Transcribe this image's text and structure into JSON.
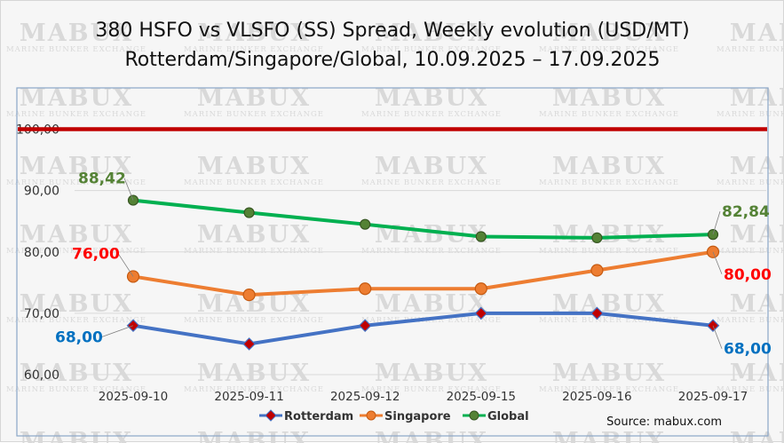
{
  "chart_data": {
    "type": "line",
    "title_line1": "380 HSFO vs VLSFO (SS) Spread, Weekly evolution (USD/MT)",
    "title_line2": "Rotterdam/Singapore/Global, 10.09.2025 – 17.09.2025",
    "categories": [
      "2025-09-10",
      "2025-09-11",
      "2025-09-12",
      "2025-09-15",
      "2025-09-16",
      "2025-09-17"
    ],
    "ylim": [
      60,
      105
    ],
    "yticks": [
      "60,00",
      "70,00",
      "80,00",
      "90,00",
      "100,00"
    ],
    "ytick_values": [
      60,
      70,
      80,
      90,
      100
    ],
    "reference_line": {
      "value": 100,
      "color": "#c00000"
    },
    "series": [
      {
        "name": "Rotterdam",
        "values": [
          68,
          65,
          68,
          70,
          70,
          68
        ],
        "color": "#4472c4",
        "label_color": "#0070c0",
        "marker": "diamond",
        "marker_fill": "#c00000",
        "first_label": "68,00",
        "last_label": "68,00"
      },
      {
        "name": "Singapore",
        "values": [
          76,
          73,
          74,
          74,
          77,
          80
        ],
        "color": "#ed7d31",
        "label_color": "#ff0000",
        "marker": "circle",
        "marker_fill": "#ed7d31",
        "first_label": "76,00",
        "last_label": "80,00"
      },
      {
        "name": "Global",
        "values": [
          88.42,
          86.4,
          84.5,
          82.5,
          82.3,
          82.84
        ],
        "color": "#00b050",
        "label_color": "#548235",
        "marker": "circle",
        "marker_fill": "#548235",
        "first_label": "88,42",
        "last_label": "82,84"
      }
    ],
    "legend": [
      "Rotterdam",
      "Singapore",
      "Global"
    ],
    "legend_position": "bottom",
    "grid": true
  },
  "source": "Source: mabux.com",
  "watermark": {
    "name": "MABUX",
    "tagline": "MARINE BUNKER EXCHANGE"
  }
}
